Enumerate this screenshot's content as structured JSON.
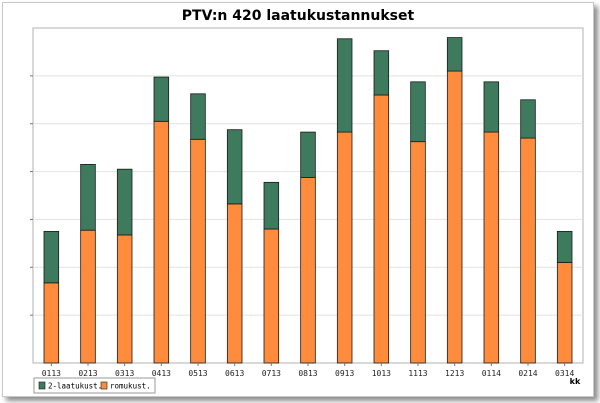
{
  "chart_data": {
    "type": "bar",
    "stacked": true,
    "title": "PTV:n  420 laatukustannukset",
    "xlabel": "kk",
    "ylabel": "",
    "categories": [
      "0113",
      "0213",
      "0313",
      "0413",
      "0513",
      "0613",
      "0713",
      "0813",
      "0913",
      "1013",
      "1113",
      "1213",
      "0114",
      "0214",
      "0314"
    ],
    "series": [
      {
        "name": "romukust.",
        "color": "#ff8c3c",
        "values": [
          33.5,
          55.5,
          53.5,
          101,
          93.5,
          66.5,
          56,
          77.5,
          96.5,
          112,
          92.5,
          122,
          96.5,
          94,
          42
        ]
      },
      {
        "name": "2-laatukust.",
        "color": "#3d7a5e",
        "values": [
          21.5,
          27.5,
          27.5,
          18.5,
          19,
          31,
          19.5,
          19,
          39,
          18.5,
          25,
          14,
          21,
          16,
          13
        ]
      }
    ],
    "ylim": [
      0,
      140
    ],
    "grid": true,
    "show_y_tick_labels": false,
    "legend_position": "bottom-left"
  }
}
